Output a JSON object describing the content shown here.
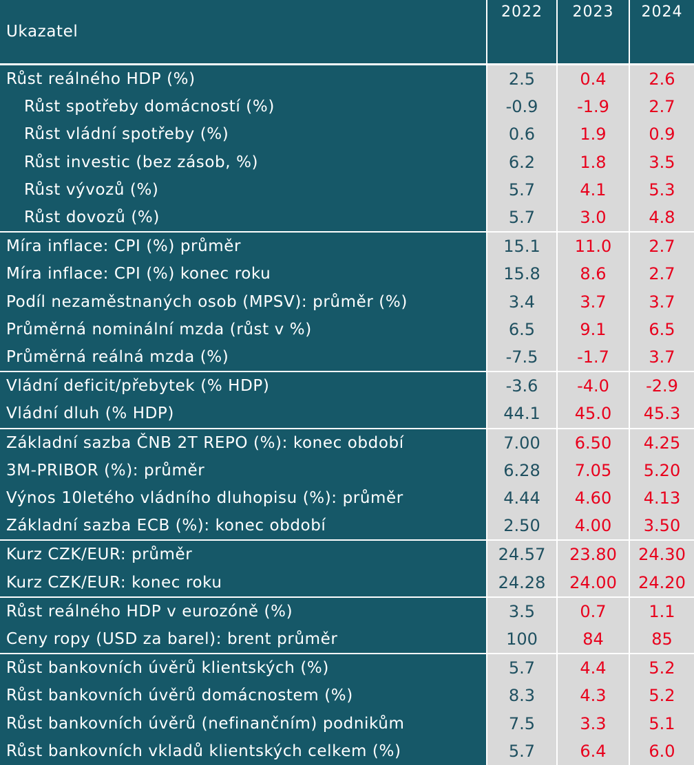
{
  "header": {
    "label": "Ukazatel",
    "years": [
      "2022",
      "2023",
      "2024"
    ]
  },
  "colors": {
    "teal": "#165868",
    "cell_bg": "#d9d9d9",
    "col_2022": "#1f5060",
    "forecast_red": "#e8001c"
  },
  "groups": [
    {
      "rows": [
        {
          "label": "Růst reálného HDP (%)",
          "indent": false,
          "values": [
            "2.5",
            "0.4",
            "2.6"
          ]
        },
        {
          "label": "Růst spotřeby domácností (%)",
          "indent": true,
          "values": [
            "-0.9",
            "-1.9",
            "2.7"
          ]
        },
        {
          "label": "Růst vládní spotřeby (%)",
          "indent": true,
          "values": [
            "0.6",
            "1.9",
            "0.9"
          ]
        },
        {
          "label": "Růst investic (bez zásob, %)",
          "indent": true,
          "values": [
            "6.2",
            "1.8",
            "3.5"
          ]
        },
        {
          "label": "Růst vývozů (%)",
          "indent": true,
          "values": [
            "5.7",
            "4.1",
            "5.3"
          ]
        },
        {
          "label": "Růst dovozů (%)",
          "indent": true,
          "values": [
            "5.7",
            "3.0",
            "4.8"
          ]
        }
      ]
    },
    {
      "rows": [
        {
          "label": "Míra inflace: CPI (%) průměr",
          "indent": false,
          "values": [
            "15.1",
            "11.0",
            "2.7"
          ]
        },
        {
          "label": "Míra inflace: CPI (%) konec roku",
          "indent": false,
          "values": [
            "15.8",
            "8.6",
            "2.7"
          ]
        },
        {
          "label": "Podíl nezaměstnaných osob (MPSV): průměr (%)",
          "indent": false,
          "values": [
            "3.4",
            "3.7",
            "3.7"
          ]
        },
        {
          "label": "Průměrná nominální mzda (růst v %)",
          "indent": false,
          "values": [
            "6.5",
            "9.1",
            "6.5"
          ]
        },
        {
          "label": "Průměrná reálná mzda (%)",
          "indent": false,
          "values": [
            "-7.5",
            "-1.7",
            "3.7"
          ]
        }
      ]
    },
    {
      "rows": [
        {
          "label": "Vládní deficit/přebytek (% HDP)",
          "indent": false,
          "values": [
            "-3.6",
            "-4.0",
            "-2.9"
          ]
        },
        {
          "label": "Vládní dluh (% HDP)",
          "indent": false,
          "values": [
            "44.1",
            "45.0",
            "45.3"
          ]
        }
      ]
    },
    {
      "rows": [
        {
          "label": "Základní sazba ČNB 2T REPO (%): konec období",
          "indent": false,
          "values": [
            "7.00",
            "6.50",
            "4.25"
          ]
        },
        {
          "label": "3M-PRIBOR (%): průměr",
          "indent": false,
          "values": [
            "6.28",
            "7.05",
            "5.20"
          ]
        },
        {
          "label": "Výnos 10letého vládního dluhopisu (%): průměr",
          "indent": false,
          "values": [
            "4.44",
            "4.60",
            "4.13"
          ]
        },
        {
          "label": "Základní sazba ECB (%): konec období",
          "indent": false,
          "values": [
            "2.50",
            "4.00",
            "3.50"
          ]
        }
      ]
    },
    {
      "rows": [
        {
          "label": "Kurz CZK/EUR: průměr",
          "indent": false,
          "values": [
            "24.57",
            "23.80",
            "24.30"
          ]
        },
        {
          "label": "Kurz CZK/EUR: konec roku",
          "indent": false,
          "values": [
            "24.28",
            "24.00",
            "24.20"
          ]
        }
      ]
    },
    {
      "rows": [
        {
          "label": "Růst reálného HDP v eurozóně (%)",
          "indent": false,
          "values": [
            "3.5",
            "0.7",
            "1.1"
          ]
        },
        {
          "label": "Ceny ropy (USD za barel): brent průměr",
          "indent": false,
          "values": [
            "100",
            "84",
            "85"
          ]
        }
      ]
    },
    {
      "rows": [
        {
          "label": "Růst bankovních úvěrů klientských (%)",
          "indent": false,
          "values": [
            "5.7",
            "4.4",
            "5.2"
          ]
        },
        {
          "label": "Růst bankovních úvěrů domácnostem (%)",
          "indent": false,
          "values": [
            "8.3",
            "4.3",
            "5.2"
          ]
        },
        {
          "label": "Růst bankovních úvěrů (nefinančním) podnikům",
          "indent": false,
          "values": [
            "7.5",
            "3.3",
            "5.1"
          ]
        },
        {
          "label": "Růst bankovních vkladů klientských celkem (%)",
          "indent": false,
          "values": [
            "5.7",
            "6.4",
            "6.0"
          ]
        }
      ]
    }
  ]
}
